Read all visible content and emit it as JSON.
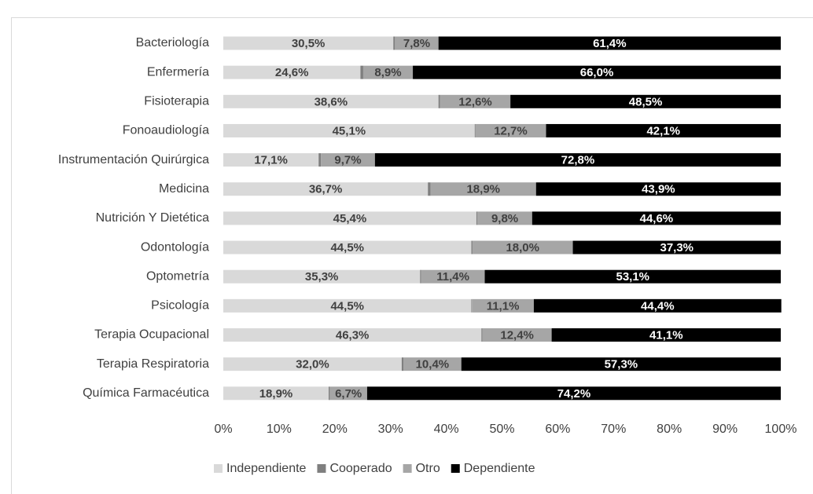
{
  "chart_data": {
    "type": "stacked_barh",
    "categories": [
      "Bacteriología",
      "Enfermería",
      "Fisioterapia",
      "Fonoaudiología",
      "Instrumentación Quirúrgica",
      "Medicina",
      "Nutrición Y Dietética",
      "Odontología",
      "Optometría",
      "Psicología",
      "Terapia Ocupacional",
      "Terapia Respiratoria",
      "Química Farmacéutica"
    ],
    "series": [
      {
        "name": "Independiente",
        "color": "#d9d9d9",
        "values": [
          30.5,
          24.6,
          38.6,
          45.1,
          17.1,
          36.7,
          45.4,
          44.5,
          35.3,
          44.5,
          46.3,
          32.0,
          18.9
        ],
        "value_labels": [
          "30,5%",
          "24,6%",
          "38,6%",
          "45,1%",
          "17,1%",
          "36,7%",
          "45,4%",
          "44,5%",
          "35,3%",
          "44,5%",
          "46,3%",
          "32,0%",
          "18,9%"
        ]
      },
      {
        "name": "Cooperado",
        "color": "#7f7f7f",
        "values": [
          0.3,
          0.5,
          0.3,
          0.1,
          0.4,
          0.5,
          0.2,
          0.2,
          0.2,
          0.1,
          0.2,
          0.3,
          0.2
        ]
      },
      {
        "name": "Otro",
        "color": "#a6a6a6",
        "values": [
          7.8,
          8.9,
          12.6,
          12.7,
          9.7,
          18.9,
          9.8,
          18.0,
          11.4,
          11.1,
          12.4,
          10.4,
          6.7
        ],
        "value_labels": [
          "7,8%",
          "8,9%",
          "12,6%",
          "12,7%",
          "9,7%",
          "18,9%",
          "9,8%",
          "18,0%",
          "11,4%",
          "11,1%",
          "12,4%",
          "10,4%",
          "6,7%"
        ]
      },
      {
        "name": "Dependiente",
        "color": "#000000",
        "values": [
          61.4,
          66.0,
          48.5,
          42.1,
          72.8,
          43.9,
          44.6,
          37.3,
          53.1,
          44.4,
          41.1,
          57.3,
          74.2
        ],
        "value_labels": [
          "61,4%",
          "66,0%",
          "48,5%",
          "42,1%",
          "72,8%",
          "43,9%",
          "44,6%",
          "37,3%",
          "53,1%",
          "44,4%",
          "41,1%",
          "57,3%",
          "74,2%"
        ]
      }
    ],
    "xlim": [
      0,
      100
    ],
    "xticks": [
      {
        "value": 0,
        "label": "0%"
      },
      {
        "value": 10,
        "label": "10%"
      },
      {
        "value": 20,
        "label": "20%"
      },
      {
        "value": 30,
        "label": "30%"
      },
      {
        "value": 40,
        "label": "40%"
      },
      {
        "value": 50,
        "label": "50%"
      },
      {
        "value": 60,
        "label": "60%"
      },
      {
        "value": 70,
        "label": "70%"
      },
      {
        "value": 80,
        "label": "80%"
      },
      {
        "value": 90,
        "label": "90%"
      },
      {
        "value": 100,
        "label": "100%"
      }
    ],
    "legend": "bottom"
  }
}
